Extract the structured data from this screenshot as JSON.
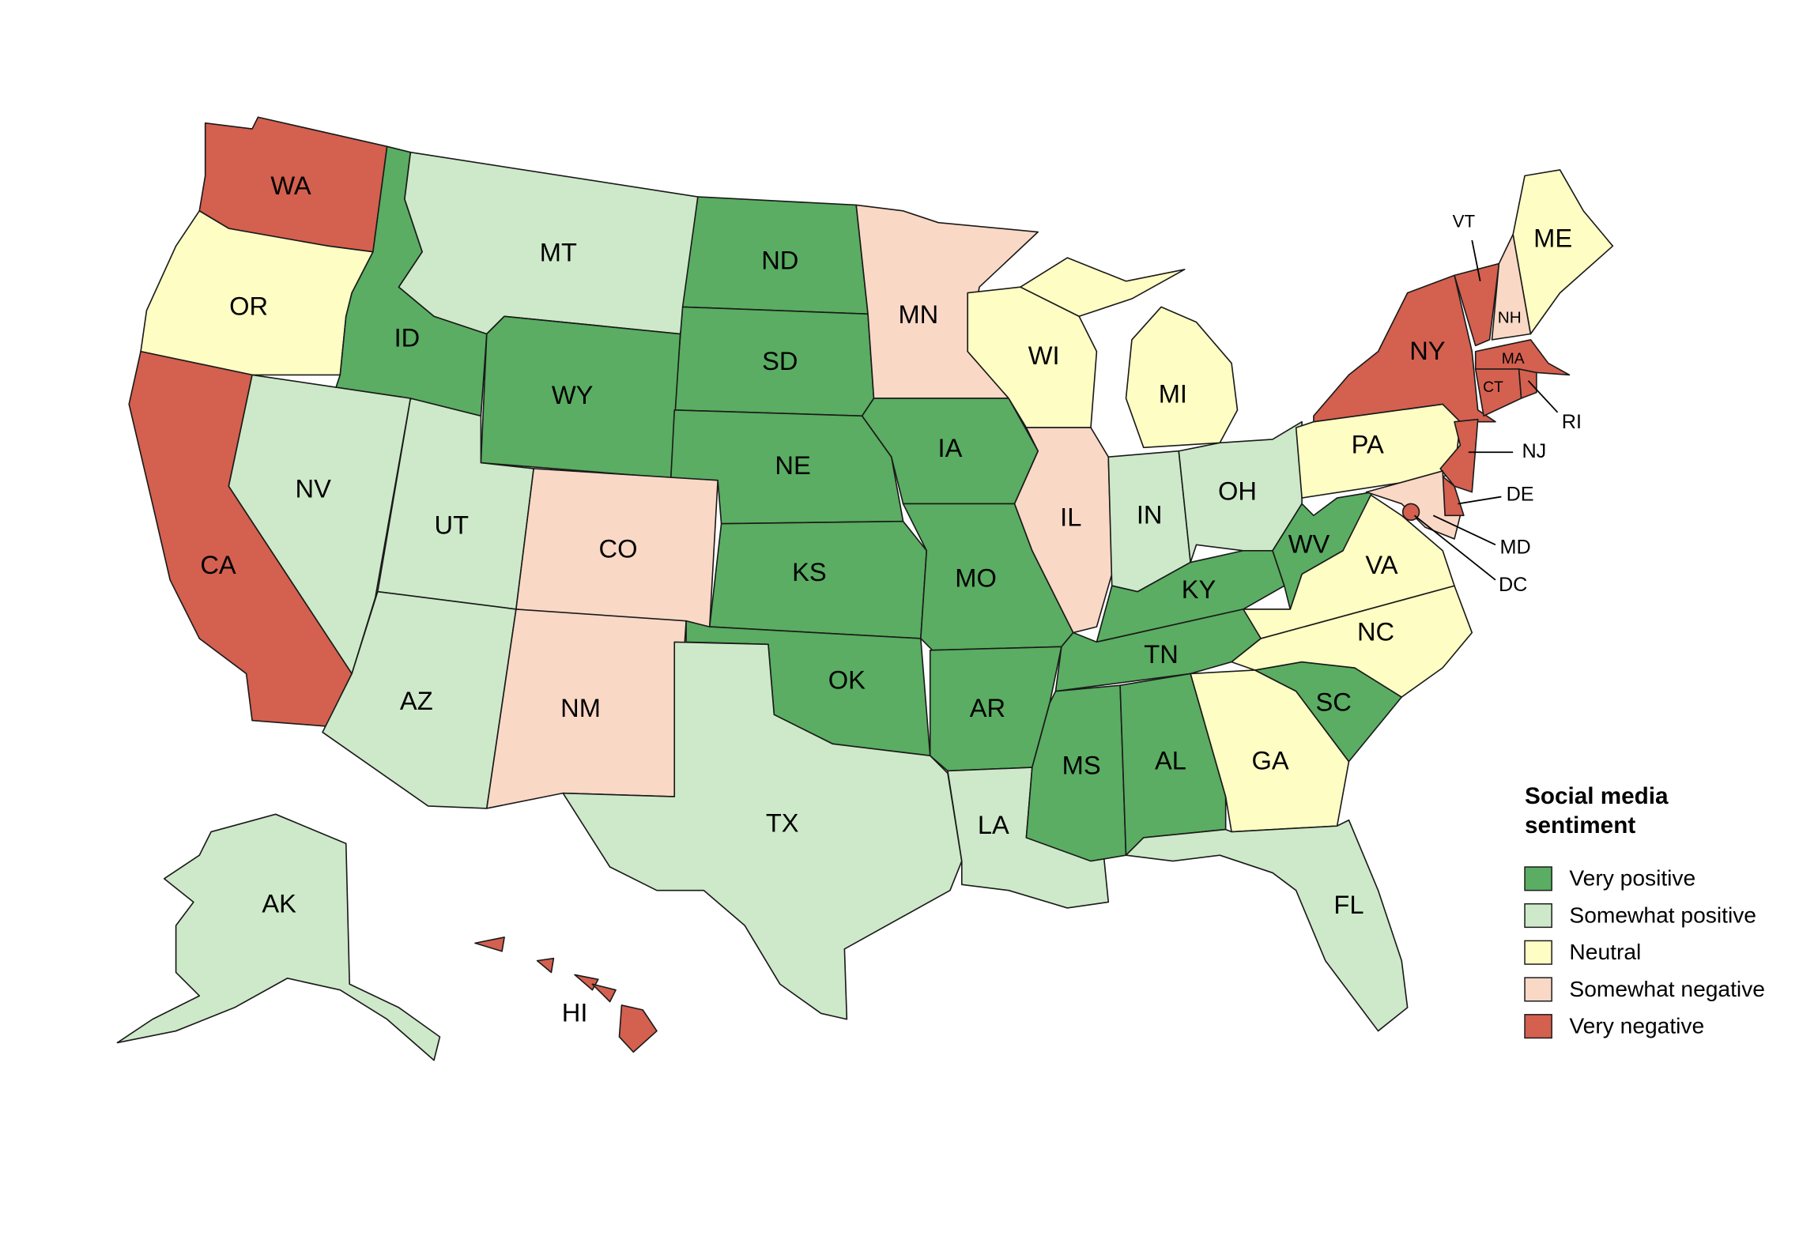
{
  "legend": {
    "title": "Social media sentiment",
    "items": [
      {
        "label": "Very positive",
        "color": "#5aad62"
      },
      {
        "label": "Somewhat positive",
        "color": "#cde9c9"
      },
      {
        "label": "Neutral",
        "color": "#fefdc4"
      },
      {
        "label": "Somewhat negative",
        "color": "#fad8c6"
      },
      {
        "label": "Very negative",
        "color": "#d4604f"
      }
    ]
  },
  "states": [
    {
      "label": "WA",
      "sentiment": "Very negative"
    },
    {
      "label": "OR",
      "sentiment": "Neutral"
    },
    {
      "label": "CA",
      "sentiment": "Very negative"
    },
    {
      "label": "ID",
      "sentiment": "Very positive"
    },
    {
      "label": "MT",
      "sentiment": "Somewhat positive"
    },
    {
      "label": "ND",
      "sentiment": "Very positive"
    },
    {
      "label": "SD",
      "sentiment": "Very positive"
    },
    {
      "label": "WY",
      "sentiment": "Very positive"
    },
    {
      "label": "NE",
      "sentiment": "Very positive"
    },
    {
      "label": "NV",
      "sentiment": "Somewhat positive"
    },
    {
      "label": "UT",
      "sentiment": "Somewhat positive"
    },
    {
      "label": "CO",
      "sentiment": "Somewhat negative"
    },
    {
      "label": "AZ",
      "sentiment": "Somewhat positive"
    },
    {
      "label": "NM",
      "sentiment": "Somewhat negative"
    },
    {
      "label": "KS",
      "sentiment": "Very positive"
    },
    {
      "label": "OK",
      "sentiment": "Very positive"
    },
    {
      "label": "TX",
      "sentiment": "Somewhat positive"
    },
    {
      "label": "MN",
      "sentiment": "Somewhat negative"
    },
    {
      "label": "IA",
      "sentiment": "Very positive"
    },
    {
      "label": "MO",
      "sentiment": "Very positive"
    },
    {
      "label": "AR",
      "sentiment": "Very positive"
    },
    {
      "label": "LA",
      "sentiment": "Somewhat positive"
    },
    {
      "label": "WI",
      "sentiment": "Neutral"
    },
    {
      "label": "IL",
      "sentiment": "Somewhat negative"
    },
    {
      "label": "MI",
      "sentiment": "Neutral"
    },
    {
      "label": "IN",
      "sentiment": "Somewhat positive"
    },
    {
      "label": "OH",
      "sentiment": "Somewhat positive"
    },
    {
      "label": "KY",
      "sentiment": "Very positive"
    },
    {
      "label": "TN",
      "sentiment": "Very positive"
    },
    {
      "label": "MS",
      "sentiment": "Very positive"
    },
    {
      "label": "AL",
      "sentiment": "Very positive"
    },
    {
      "label": "GA",
      "sentiment": "Neutral"
    },
    {
      "label": "FL",
      "sentiment": "Somewhat positive"
    },
    {
      "label": "SC",
      "sentiment": "Very positive"
    },
    {
      "label": "NC",
      "sentiment": "Neutral"
    },
    {
      "label": "VA",
      "sentiment": "Neutral"
    },
    {
      "label": "WV",
      "sentiment": "Very positive"
    },
    {
      "label": "PA",
      "sentiment": "Neutral"
    },
    {
      "label": "NY",
      "sentiment": "Very negative"
    },
    {
      "label": "NJ",
      "sentiment": "Very negative"
    },
    {
      "label": "DE",
      "sentiment": "Very negative"
    },
    {
      "label": "MD",
      "sentiment": "Somewhat negative"
    },
    {
      "label": "DC",
      "sentiment": "Very negative"
    },
    {
      "label": "VT",
      "sentiment": "Very negative"
    },
    {
      "label": "NH",
      "sentiment": "Somewhat negative"
    },
    {
      "label": "ME",
      "sentiment": "Neutral"
    },
    {
      "label": "MA",
      "sentiment": "Very negative"
    },
    {
      "label": "CT",
      "sentiment": "Very negative"
    },
    {
      "label": "RI",
      "sentiment": "Very negative"
    },
    {
      "label": "AK",
      "sentiment": "Somewhat positive"
    },
    {
      "label": "HI",
      "sentiment": "Very negative"
    }
  ]
}
